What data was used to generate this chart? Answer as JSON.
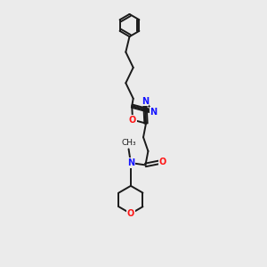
{
  "bg_color": "#ebebeb",
  "bond_color": "#1a1a1a",
  "N_color": "#1414ff",
  "O_color": "#ff1414",
  "line_width": 1.4,
  "font_size": 7.0,
  "fig_size": [
    3.0,
    3.0
  ],
  "dpi": 100,
  "xlim": [
    0,
    10
  ],
  "ylim": [
    0,
    10
  ]
}
